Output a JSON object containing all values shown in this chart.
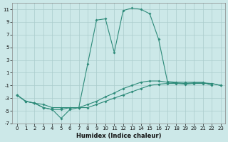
{
  "xlabel": "Humidex (Indice chaleur)",
  "x": [
    0,
    1,
    2,
    3,
    4,
    5,
    6,
    7,
    8,
    9,
    10,
    11,
    12,
    13,
    14,
    15,
    16,
    17,
    18,
    19,
    20,
    21,
    22,
    23
  ],
  "line_peak": [
    -2.5,
    -3.5,
    -3.8,
    -4.5,
    -4.8,
    -4.8,
    -4.5,
    -4.5,
    2.4,
    9.3,
    9.5,
    4.2,
    10.8,
    11.2,
    11.0,
    10.3,
    6.3,
    -0.4,
    -0.5,
    -0.5,
    -0.5,
    -0.5,
    -1.0,
    null
  ],
  "line_mid": [
    -2.5,
    -3.5,
    -3.8,
    -4.0,
    -4.5,
    -4.5,
    -4.5,
    -4.5,
    -4.0,
    -3.5,
    -2.8,
    -2.2,
    -1.5,
    -1.0,
    -0.5,
    -0.3,
    -0.3,
    -0.5,
    -0.6,
    -0.7,
    -0.6,
    -0.6,
    -0.7,
    -1.0
  ],
  "line_bot": [
    -2.5,
    -3.5,
    -3.8,
    -4.5,
    -4.8,
    -6.2,
    -4.8,
    -4.5,
    -4.5,
    -4.0,
    -3.5,
    -3.0,
    -2.5,
    -2.0,
    -1.5,
    -1.0,
    -0.8,
    -0.7,
    -0.7,
    -0.8,
    -0.7,
    -0.7,
    -0.7,
    -1.0
  ],
  "ylim": [
    -7,
    12
  ],
  "xlim": [
    -0.5,
    23.5
  ],
  "yticks": [
    -7,
    -5,
    -3,
    -1,
    1,
    3,
    5,
    7,
    9,
    11
  ],
  "xticks": [
    0,
    1,
    2,
    3,
    4,
    5,
    6,
    7,
    8,
    9,
    10,
    11,
    12,
    13,
    14,
    15,
    16,
    17,
    18,
    19,
    20,
    21,
    22,
    23
  ],
  "line_color": "#2e8b7a",
  "bg_color": "#cce8e8",
  "grid_color": "#aacccc"
}
